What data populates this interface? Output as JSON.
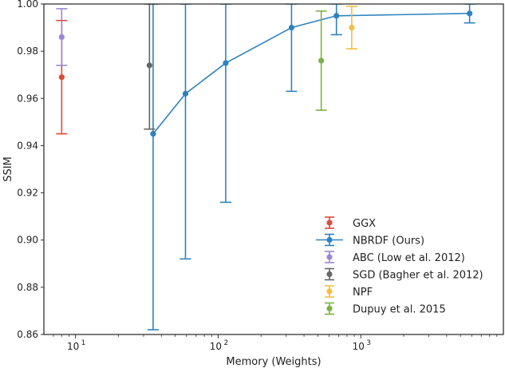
{
  "chart_data": {
    "type": "scatter",
    "title": "",
    "xlabel": "Memory (Weights)",
    "ylabel": "SSIM",
    "xscale": "log",
    "xlim": [
      6,
      10000
    ],
    "ylim": [
      0.86,
      1.0
    ],
    "grid": false,
    "legend_position": "lower-right",
    "x_ticks": [
      {
        "value": 10,
        "label": "10",
        "exp": "1"
      },
      {
        "value": 100,
        "label": "10",
        "exp": "2"
      },
      {
        "value": 1000,
        "label": "10",
        "exp": "3"
      }
    ],
    "y_ticks": [
      {
        "value": 0.86,
        "label": "0.86"
      },
      {
        "value": 0.88,
        "label": "0.88"
      },
      {
        "value": 0.9,
        "label": "0.90"
      },
      {
        "value": 0.92,
        "label": "0.92"
      },
      {
        "value": 0.94,
        "label": "0.94"
      },
      {
        "value": 0.96,
        "label": "0.96"
      },
      {
        "value": 0.98,
        "label": "0.98"
      },
      {
        "value": 1.0,
        "label": "1.00"
      }
    ],
    "series": [
      {
        "name": "GGX",
        "color": "#e04a3a",
        "connected": false,
        "points": [
          {
            "x": 8,
            "y": 0.969,
            "low": 0.945,
            "high": 0.993
          }
        ]
      },
      {
        "name": "NBRDF (Ours)",
        "color": "#2e82c0",
        "connected": true,
        "points": [
          {
            "x": 35,
            "y": 0.945,
            "low": 0.862,
            "high": 1.0
          },
          {
            "x": 59,
            "y": 0.962,
            "low": 0.892,
            "high": 1.0
          },
          {
            "x": 113,
            "y": 0.975,
            "low": 0.916,
            "high": 1.0
          },
          {
            "x": 327,
            "y": 0.99,
            "low": 0.963,
            "high": 1.0
          },
          {
            "x": 675,
            "y": 0.995,
            "low": 0.987,
            "high": 1.0
          },
          {
            "x": 5795,
            "y": 0.996,
            "low": 0.992,
            "high": 1.0
          }
        ]
      },
      {
        "name": "ABC (Low et al. 2012)",
        "color": "#9a86d4",
        "connected": false,
        "points": [
          {
            "x": 8,
            "y": 0.986,
            "low": 0.974,
            "high": 0.998
          }
        ]
      },
      {
        "name": "SGD (Bagher et al. 2012)",
        "color": "#666666",
        "connected": false,
        "points": [
          {
            "x": 33,
            "y": 0.974,
            "low": 0.947,
            "high": 1.0
          }
        ]
      },
      {
        "name": "NPF",
        "color": "#f5be3f",
        "connected": false,
        "points": [
          {
            "x": 864,
            "y": 0.99,
            "low": 0.981,
            "high": 0.999
          }
        ]
      },
      {
        "name": "Dupuy et al. 2015",
        "color": "#7cb342",
        "connected": false,
        "points": [
          {
            "x": 528,
            "y": 0.976,
            "low": 0.955,
            "high": 0.997
          }
        ]
      }
    ]
  }
}
